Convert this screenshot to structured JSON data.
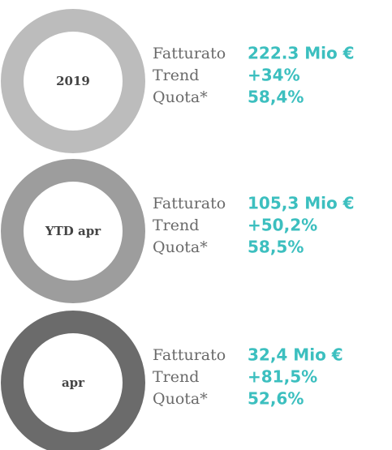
{
  "items": [
    {
      "period": "2019",
      "rows": [
        {
          "label": "Fatturato",
          "value": "222.3 Mio €"
        },
        {
          "label": "Trend",
          "value": "+34%"
        },
        {
          "label": "Quota*",
          "value": "58,4%"
        }
      ]
    },
    {
      "period": "YTD apr",
      "rows": [
        {
          "label": "Fatturato",
          "value": "105,3 Mio €"
        },
        {
          "label": "Trend",
          "value": "+50,2%"
        },
        {
          "label": "Quota*",
          "value": "58,5%"
        }
      ]
    },
    {
      "period": "apr",
      "rows": [
        {
          "label": "Fatturato",
          "value": "32,4 Mio €"
        },
        {
          "label": "Trend",
          "value": "+81,5%"
        },
        {
          "label": "Quota*",
          "value": "52,6%"
        }
      ]
    }
  ]
}
